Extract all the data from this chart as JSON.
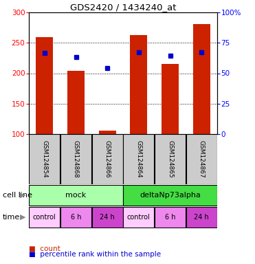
{
  "title": "GDS2420 / 1434240_at",
  "samples": [
    "GSM124854",
    "GSM124868",
    "GSM124866",
    "GSM124864",
    "GSM124865",
    "GSM124867"
  ],
  "counts": [
    259,
    204,
    106,
    263,
    215,
    281
  ],
  "percentile_ranks": [
    233,
    226,
    208,
    235,
    229,
    235
  ],
  "ylim_left": [
    100,
    300
  ],
  "ylim_right": [
    0,
    100
  ],
  "yticks_left": [
    100,
    150,
    200,
    250,
    300
  ],
  "yticks_right": [
    0,
    25,
    50,
    75,
    100
  ],
  "ytick_labels_right": [
    "0",
    "25",
    "50",
    "75",
    "100%"
  ],
  "bar_color": "#cc2200",
  "dot_color": "#0000cc",
  "bar_width": 0.55,
  "cell_line_groups": [
    {
      "label": "mock",
      "color": "#aaffaa",
      "start": 0,
      "end": 3
    },
    {
      "label": "deltaNp73alpha",
      "color": "#44dd44",
      "start": 3,
      "end": 6
    }
  ],
  "time_groups": [
    {
      "label": "control",
      "color": "#ffccff",
      "start": 0,
      "end": 1
    },
    {
      "label": "6 h",
      "color": "#ee88ee",
      "start": 1,
      "end": 2
    },
    {
      "label": "24 h",
      "color": "#cc44cc",
      "start": 2,
      "end": 3
    },
    {
      "label": "control",
      "color": "#ffccff",
      "start": 3,
      "end": 4
    },
    {
      "label": "6 h",
      "color": "#ee88ee",
      "start": 4,
      "end": 5
    },
    {
      "label": "24 h",
      "color": "#cc44cc",
      "start": 5,
      "end": 6
    }
  ],
  "legend_count_color": "#cc2200",
  "legend_rank_color": "#0000cc",
  "cell_line_label": "cell line",
  "time_label": "time",
  "background_color": "#ffffff",
  "sample_bg_color": "#cccccc"
}
